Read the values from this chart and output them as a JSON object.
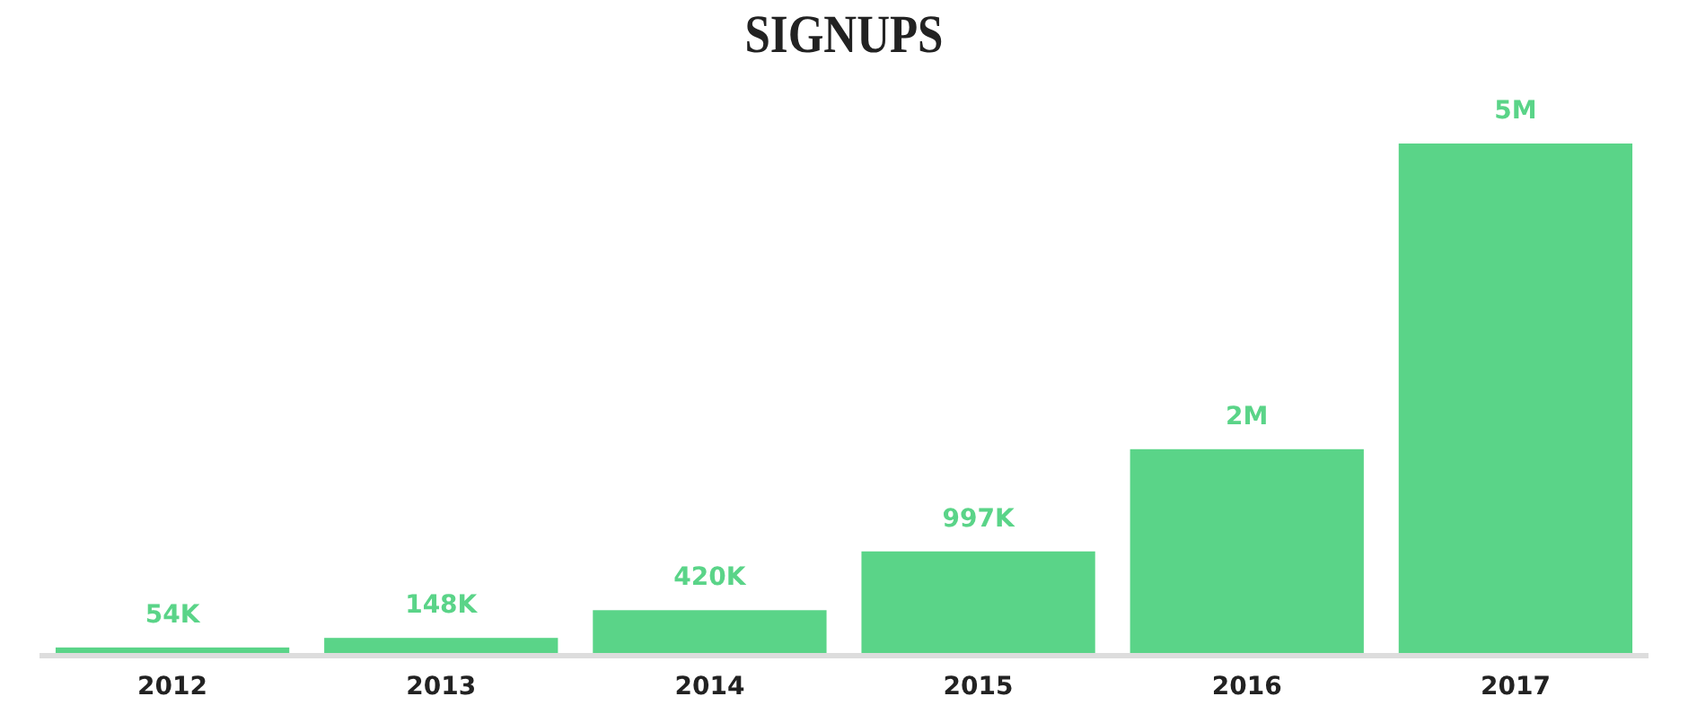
{
  "chart_data": {
    "type": "bar",
    "title": "SIGNUPS",
    "categories": [
      "2012",
      "2013",
      "2014",
      "2015",
      "2016",
      "2017"
    ],
    "values": [
      54000,
      148000,
      420000,
      997000,
      2000000,
      5000000
    ],
    "value_labels": [
      "54K",
      "148K",
      "420K",
      "997K",
      "2M",
      "5M"
    ],
    "color": "#5ad488"
  }
}
